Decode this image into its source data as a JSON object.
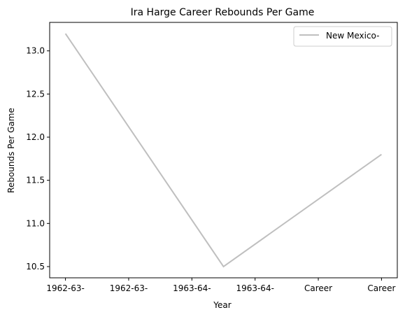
{
  "chart_data": {
    "type": "line",
    "title": "Ira Harge Career Rebounds Per Game",
    "xlabel": "Year",
    "ylabel": "Rebounds Per Game",
    "categories": [
      "1962-63-",
      "1962-63-",
      "1963-64-",
      "1963-64-",
      "Career",
      "Career"
    ],
    "series": [
      {
        "name": "New Mexico-",
        "color": "#bfbfbf",
        "points": [
          {
            "x": 0,
            "y": 13.2
          },
          {
            "x": 2.5,
            "y": 10.5
          },
          {
            "x": 5,
            "y": 11.8
          }
        ]
      }
    ],
    "ylim": [
      10.37,
      13.33
    ],
    "xlim": [
      -0.25,
      5.25
    ],
    "yticks": [
      "10.5",
      "11.0",
      "11.5",
      "12.0",
      "12.5",
      "13.0"
    ],
    "legend_position": "top-right",
    "grid": false
  }
}
